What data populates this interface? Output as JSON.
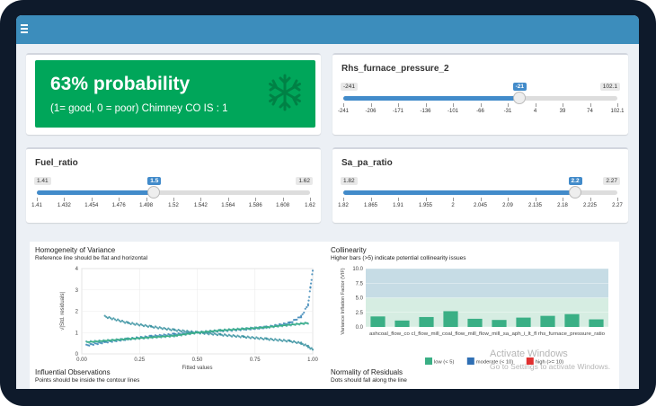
{
  "header": {
    "menu_icon": "hamburger-icon",
    "color": "#3c8dbc"
  },
  "valuebox": {
    "headline": "63% probability",
    "subtitle": "(1= good, 0 = poor) Chimney CO IS : 1",
    "icon": "snowflake-icon",
    "color": "#00a65a"
  },
  "sliders": {
    "rhs": {
      "label": "Rhs_furnace_pressure_2",
      "min_label": "-241",
      "max_label": "102.1",
      "value_label": "-21",
      "min": -241,
      "max": 102.1,
      "value": -21,
      "ticks": [
        "-241",
        "-206",
        "-171",
        "-136",
        "-101",
        "-66",
        "-31",
        "4",
        "39",
        "74",
        "102.1"
      ]
    },
    "fuel": {
      "label": "Fuel_ratio",
      "min_label": "1.41",
      "max_label": "1.62",
      "value_label": "1.5",
      "min": 1.41,
      "max": 1.62,
      "value": 1.5,
      "ticks": [
        "1.41",
        "1.432",
        "1.454",
        "1.476",
        "1.498",
        "1.52",
        "1.542",
        "1.564",
        "1.586",
        "1.608",
        "1.62"
      ]
    },
    "sapa": {
      "label": "Sa_pa_ratio",
      "min_label": "1.82",
      "max_label": "2.27",
      "value_label": "2.2",
      "min": 1.82,
      "max": 2.27,
      "value": 2.2,
      "ticks": [
        "1.82",
        "1.865",
        "1.91",
        "1.955",
        "2",
        "2.045",
        "2.09",
        "2.135",
        "2.18",
        "2.225",
        "2.27"
      ]
    }
  },
  "plots": {
    "homogeneity": {
      "title": "Homogeneity of Variance",
      "subtitle": "Reference line should be flat and horizontal",
      "xlabel": "Fitted values",
      "ylabel": "√|Std. residuals|"
    },
    "collinearity": {
      "title": "Collinearity",
      "subtitle": "Higher bars (>5) indicate potential collinearity issues",
      "ylabel": "Variance Inflation Factor (VIF)",
      "legend": [
        "low (< 5)",
        "moderate (< 10)",
        "high (>= 10)"
      ],
      "legend_colors": [
        "#3aaf85",
        "#2f6fb4",
        "#e03030"
      ]
    },
    "influential": {
      "title": "Influential Observations",
      "subtitle": "Points should be inside the contour lines"
    },
    "normality": {
      "title": "Normality of Residuals",
      "subtitle": "Dots should fall along the line"
    }
  },
  "chart_data": [
    {
      "type": "scatter",
      "title": "Homogeneity of Variance",
      "xlabel": "Fitted values",
      "ylabel": "√|Std. residuals|",
      "xlim": [
        0,
        1
      ],
      "ylim": [
        0,
        4
      ],
      "x_ticks": [
        "0.00",
        "0.25",
        "0.50",
        "0.75",
        "1.00"
      ],
      "y_ticks": [
        "0",
        "1",
        "2",
        "3",
        "4"
      ],
      "series": [
        {
          "x": [
            0.02,
            0.1,
            0.2,
            0.3,
            0.4,
            0.5,
            0.6,
            0.7,
            0.8,
            0.9,
            0.95,
            0.98,
            0.99,
            1.0
          ],
          "y": [
            0.4,
            0.55,
            0.7,
            0.82,
            0.92,
            1.0,
            1.08,
            1.15,
            1.25,
            1.45,
            1.75,
            2.3,
            3.1,
            3.9
          ]
        },
        {
          "x": [
            0.1,
            0.2,
            0.3,
            0.4,
            0.5,
            0.6,
            0.7,
            0.8,
            0.9,
            0.95,
            0.98,
            1.0
          ],
          "y": [
            1.75,
            1.45,
            1.28,
            1.12,
            1.0,
            0.9,
            0.8,
            0.7,
            0.6,
            0.5,
            0.35,
            0.2
          ]
        },
        {
          "x": [
            0.02,
            0.2,
            0.4,
            0.5,
            0.6,
            0.8,
            0.98
          ],
          "y": [
            0.55,
            0.7,
            0.85,
            1.0,
            1.1,
            1.25,
            1.45
          ]
        }
      ]
    },
    {
      "type": "bar",
      "title": "Collinearity",
      "ylabel": "Variance Inflation Factor (VIF)",
      "ylim": [
        0,
        10
      ],
      "y_ticks": [
        "0.0",
        "2.5",
        "5.0",
        "7.5",
        "10.0"
      ],
      "categories": [
        "ashcoal_flow_co",
        "coal_flow_mill",
        "coal_flow_mill",
        "coal_flow_mill",
        "coal_flow_mill",
        "coal_flow_mill",
        "sa_aph",
        "lt_flue",
        "rhs_furnace_pressure",
        "fuel_ratio"
      ],
      "tick_labels_shown": "ashcoal_flow_co cl_flow_mill_coal_flow_mill_flow_mill_sa_aph_i_lt_fl rhs_furnace_pressure_ratio",
      "values": [
        1.8,
        1.1,
        1.7,
        2.7,
        1.4,
        1.2,
        1.6,
        1.9,
        2.2,
        1.3
      ]
    }
  ],
  "watermark": {
    "line1": "Activate Windows",
    "line2": "Go to Settings to activate Windows."
  }
}
